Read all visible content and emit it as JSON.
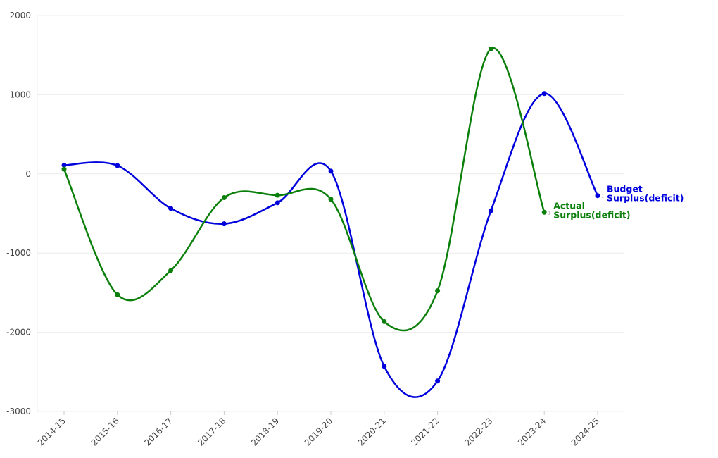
{
  "chart_data": {
    "type": "line",
    "title": "",
    "xlabel": "",
    "ylabel": "",
    "categories": [
      "2014-15",
      "2015-16",
      "2016-17",
      "2017-18",
      "2018-19",
      "2019-20",
      "2020-21",
      "2021-22",
      "2022-23",
      "2023-24",
      "2024-25"
    ],
    "ylim": [
      -3000,
      2000
    ],
    "yticks": [
      "2000",
      "1000",
      "0",
      "-1000",
      "-2000",
      "-3000"
    ],
    "ytick_values": [
      2000,
      1000,
      0,
      -1000,
      -2000,
      -3000
    ],
    "grid": true,
    "legend": "end-of-line labels",
    "series": [
      {
        "name_lines": [
          "Budget",
          "Surplus(deficit)"
        ],
        "color": "#0000dd",
        "values": [
          110,
          105,
          -435,
          -630,
          -365,
          35,
          -2430,
          -2615,
          -465,
          1015,
          -275
        ]
      },
      {
        "name_lines": [
          "Actual",
          "Surplus(deficit)"
        ],
        "color": "#0a7f0a",
        "values": [
          60,
          -1525,
          -1220,
          -300,
          -270,
          -320,
          -1865,
          -1475,
          1580,
          -485,
          null
        ]
      }
    ]
  }
}
